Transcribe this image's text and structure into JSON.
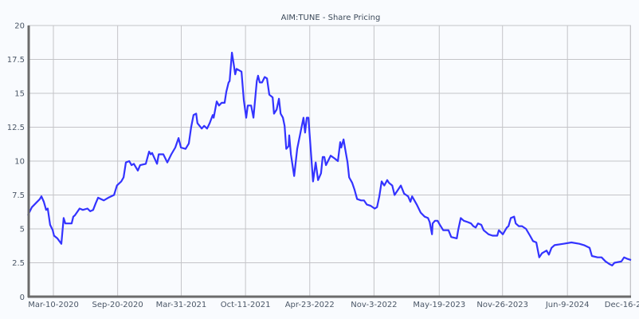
{
  "chart_data": {
    "type": "line",
    "title": "AIM:TUNE - Share Pricing",
    "xlabel": "",
    "ylabel": "",
    "ylim": [
      0,
      20
    ],
    "xlim": [
      "2019-12-24",
      "2024-12-18"
    ],
    "grid": true,
    "legend": "none",
    "line_color": "#3333ff",
    "y_ticks": [
      {
        "value": 0,
        "label": "0"
      },
      {
        "value": 2.5,
        "label": "2.5"
      },
      {
        "value": 5,
        "label": "5"
      },
      {
        "value": 7.5,
        "label": "7.5"
      },
      {
        "value": 10,
        "label": "10"
      },
      {
        "value": 12.5,
        "label": "12.5"
      },
      {
        "value": 15,
        "label": "15"
      },
      {
        "value": 17.5,
        "label": "17.5"
      },
      {
        "value": 20,
        "label": "20"
      }
    ],
    "x_ticks": [
      {
        "date": "2020-03-10",
        "label": "Mar-10-2020"
      },
      {
        "date": "2020-09-20",
        "label": "Sep-20-2020"
      },
      {
        "date": "2021-03-31",
        "label": "Mar-31-2021"
      },
      {
        "date": "2021-10-11",
        "label": "Oct-11-2021"
      },
      {
        "date": "2022-04-23",
        "label": "Apr-23-2022"
      },
      {
        "date": "2022-11-03",
        "label": "Nov-3-2022"
      },
      {
        "date": "2023-05-19",
        "label": "May-19-2023"
      },
      {
        "date": "2023-11-26",
        "label": "Nov-26-2023"
      },
      {
        "date": "2024-06-09",
        "label": "Jun-9-2024"
      },
      {
        "date": "2024-12-16",
        "label": "Dec-16-2024"
      }
    ],
    "series": [
      {
        "points": [
          [
            "2019-12-24",
            6.0
          ],
          [
            "2020-01-05",
            6.6
          ],
          [
            "2020-01-17",
            6.9
          ],
          [
            "2020-01-29",
            7.2
          ],
          [
            "2020-02-03",
            7.4
          ],
          [
            "2020-02-10",
            7.0
          ],
          [
            "2020-02-17",
            6.4
          ],
          [
            "2020-02-22",
            6.5
          ],
          [
            "2020-02-29",
            5.3
          ],
          [
            "2020-03-08",
            4.9
          ],
          [
            "2020-03-12",
            4.5
          ],
          [
            "2020-03-22",
            4.3
          ],
          [
            "2020-04-03",
            3.9
          ],
          [
            "2020-04-10",
            5.8
          ],
          [
            "2020-04-15",
            5.4
          ],
          [
            "2020-05-04",
            5.4
          ],
          [
            "2020-05-09",
            5.9
          ],
          [
            "2020-05-14",
            6.0
          ],
          [
            "2020-05-28",
            6.5
          ],
          [
            "2020-06-07",
            6.4
          ],
          [
            "2020-06-21",
            6.5
          ],
          [
            "2020-06-29",
            6.3
          ],
          [
            "2020-07-08",
            6.4
          ],
          [
            "2020-07-16",
            6.9
          ],
          [
            "2020-07-23",
            7.3
          ],
          [
            "2020-08-09",
            7.1
          ],
          [
            "2020-08-23",
            7.3
          ],
          [
            "2020-09-09",
            7.5
          ],
          [
            "2020-09-18",
            8.2
          ],
          [
            "2020-10-01",
            8.5
          ],
          [
            "2020-10-08",
            8.8
          ],
          [
            "2020-10-15",
            9.9
          ],
          [
            "2020-10-25",
            10.0
          ],
          [
            "2020-11-01",
            9.7
          ],
          [
            "2020-11-08",
            9.8
          ],
          [
            "2020-11-20",
            9.3
          ],
          [
            "2020-11-27",
            9.7
          ],
          [
            "2020-12-14",
            9.8
          ],
          [
            "2020-12-24",
            10.7
          ],
          [
            "2020-12-29",
            10.5
          ],
          [
            "2021-01-02",
            10.6
          ],
          [
            "2021-01-17",
            9.8
          ],
          [
            "2021-01-22",
            10.5
          ],
          [
            "2021-02-05",
            10.5
          ],
          [
            "2021-02-17",
            9.9
          ],
          [
            "2021-03-01",
            10.5
          ],
          [
            "2021-03-13",
            11.0
          ],
          [
            "2021-03-23",
            11.7
          ],
          [
            "2021-03-30",
            11.0
          ],
          [
            "2021-04-13",
            10.9
          ],
          [
            "2021-04-23",
            11.3
          ],
          [
            "2021-04-30",
            12.5
          ],
          [
            "2021-05-07",
            13.4
          ],
          [
            "2021-05-15",
            13.5
          ],
          [
            "2021-05-19",
            12.8
          ],
          [
            "2021-06-01",
            12.4
          ],
          [
            "2021-06-08",
            12.6
          ],
          [
            "2021-06-17",
            12.4
          ],
          [
            "2021-06-25",
            12.8
          ],
          [
            "2021-07-04",
            13.4
          ],
          [
            "2021-07-07",
            13.2
          ],
          [
            "2021-07-16",
            14.4
          ],
          [
            "2021-07-23",
            14.1
          ],
          [
            "2021-07-31",
            14.3
          ],
          [
            "2021-08-09",
            14.3
          ],
          [
            "2021-08-14",
            15.1
          ],
          [
            "2021-08-21",
            15.8
          ],
          [
            "2021-08-24",
            15.9
          ],
          [
            "2021-08-31",
            18.0
          ],
          [
            "2021-09-05",
            17.2
          ],
          [
            "2021-09-10",
            16.4
          ],
          [
            "2021-09-14",
            16.8
          ],
          [
            "2021-09-29",
            16.6
          ],
          [
            "2021-10-06",
            14.5
          ],
          [
            "2021-10-13",
            13.2
          ],
          [
            "2021-10-18",
            14.1
          ],
          [
            "2021-10-28",
            14.1
          ],
          [
            "2021-11-04",
            13.2
          ],
          [
            "2021-11-14",
            15.9
          ],
          [
            "2021-11-18",
            16.3
          ],
          [
            "2021-11-23",
            15.8
          ],
          [
            "2021-11-30",
            15.8
          ],
          [
            "2021-12-08",
            16.2
          ],
          [
            "2021-12-15",
            16.1
          ],
          [
            "2021-12-22",
            14.9
          ],
          [
            "2022-01-01",
            14.7
          ],
          [
            "2022-01-05",
            13.5
          ],
          [
            "2022-01-13",
            13.8
          ],
          [
            "2022-01-20",
            14.6
          ],
          [
            "2022-01-25",
            13.5
          ],
          [
            "2022-02-01",
            13.2
          ],
          [
            "2022-02-06",
            12.6
          ],
          [
            "2022-02-11",
            10.9
          ],
          [
            "2022-02-18",
            11.1
          ],
          [
            "2022-02-20",
            11.9
          ],
          [
            "2022-02-25",
            10.5
          ],
          [
            "2022-03-07",
            8.9
          ],
          [
            "2022-03-16",
            10.9
          ],
          [
            "2022-03-26",
            12.1
          ],
          [
            "2022-04-04",
            13.2
          ],
          [
            "2022-04-09",
            12.1
          ],
          [
            "2022-04-14",
            13.2
          ],
          [
            "2022-04-19",
            13.2
          ],
          [
            "2022-05-03",
            8.5
          ],
          [
            "2022-05-11",
            9.9
          ],
          [
            "2022-05-18",
            8.6
          ],
          [
            "2022-05-27",
            9.1
          ],
          [
            "2022-06-01",
            10.3
          ],
          [
            "2022-06-06",
            10.3
          ],
          [
            "2022-06-11",
            9.7
          ],
          [
            "2022-06-25",
            10.4
          ],
          [
            "2022-07-07",
            10.2
          ],
          [
            "2022-07-17",
            10.0
          ],
          [
            "2022-07-24",
            11.4
          ],
          [
            "2022-07-27",
            11.0
          ],
          [
            "2022-08-03",
            11.6
          ],
          [
            "2022-08-08",
            10.9
          ],
          [
            "2022-08-15",
            9.9
          ],
          [
            "2022-08-20",
            8.8
          ],
          [
            "2022-08-29",
            8.4
          ],
          [
            "2022-09-05",
            7.9
          ],
          [
            "2022-09-13",
            7.2
          ],
          [
            "2022-09-25",
            7.1
          ],
          [
            "2022-10-04",
            7.1
          ],
          [
            "2022-10-12",
            6.8
          ],
          [
            "2022-10-24",
            6.7
          ],
          [
            "2022-11-05",
            6.5
          ],
          [
            "2022-11-12",
            6.6
          ],
          [
            "2022-11-19",
            7.4
          ],
          [
            "2022-11-26",
            8.5
          ],
          [
            "2022-12-04",
            8.2
          ],
          [
            "2022-12-13",
            8.6
          ],
          [
            "2022-12-18",
            8.4
          ],
          [
            "2022-12-28",
            8.2
          ],
          [
            "2023-01-04",
            7.5
          ],
          [
            "2023-01-23",
            8.2
          ],
          [
            "2023-02-02",
            7.6
          ],
          [
            "2023-02-14",
            7.4
          ],
          [
            "2023-02-21",
            7.0
          ],
          [
            "2023-02-26",
            7.4
          ],
          [
            "2023-03-12",
            6.8
          ],
          [
            "2023-03-24",
            6.2
          ],
          [
            "2023-04-05",
            5.9
          ],
          [
            "2023-04-15",
            5.8
          ],
          [
            "2023-04-20",
            5.5
          ],
          [
            "2023-04-27",
            4.6
          ],
          [
            "2023-04-29",
            5.4
          ],
          [
            "2023-05-06",
            5.6
          ],
          [
            "2023-05-14",
            5.6
          ],
          [
            "2023-05-21",
            5.3
          ],
          [
            "2023-05-31",
            4.9
          ],
          [
            "2023-06-16",
            4.9
          ],
          [
            "2023-06-24",
            4.4
          ],
          [
            "2023-07-11",
            4.3
          ],
          [
            "2023-07-15",
            4.9
          ],
          [
            "2023-07-23",
            5.8
          ],
          [
            "2023-08-01",
            5.6
          ],
          [
            "2023-08-13",
            5.5
          ],
          [
            "2023-08-23",
            5.4
          ],
          [
            "2023-08-30",
            5.2
          ],
          [
            "2023-09-06",
            5.1
          ],
          [
            "2023-09-13",
            5.4
          ],
          [
            "2023-09-23",
            5.3
          ],
          [
            "2023-09-30",
            4.9
          ],
          [
            "2023-10-15",
            4.6
          ],
          [
            "2023-10-27",
            4.5
          ],
          [
            "2023-11-10",
            4.5
          ],
          [
            "2023-11-15",
            4.9
          ],
          [
            "2023-11-27",
            4.6
          ],
          [
            "2023-12-09",
            5.1
          ],
          [
            "2023-12-14",
            5.2
          ],
          [
            "2023-12-21",
            5.8
          ],
          [
            "2023-12-31",
            5.9
          ],
          [
            "2024-01-05",
            5.4
          ],
          [
            "2024-01-14",
            5.2
          ],
          [
            "2024-01-24",
            5.2
          ],
          [
            "2024-02-05",
            5.0
          ],
          [
            "2024-02-17",
            4.5
          ],
          [
            "2024-02-26",
            4.1
          ],
          [
            "2024-03-07",
            4.0
          ],
          [
            "2024-03-16",
            2.9
          ],
          [
            "2024-03-24",
            3.2
          ],
          [
            "2024-04-07",
            3.4
          ],
          [
            "2024-04-14",
            3.1
          ],
          [
            "2024-04-22",
            3.6
          ],
          [
            "2024-05-01",
            3.8
          ],
          [
            "2024-05-28",
            3.9
          ],
          [
            "2024-06-21",
            4.0
          ],
          [
            "2024-07-15",
            3.9
          ],
          [
            "2024-07-29",
            3.8
          ],
          [
            "2024-08-15",
            3.6
          ],
          [
            "2024-08-22",
            3.0
          ],
          [
            "2024-09-08",
            2.9
          ],
          [
            "2024-09-20",
            2.9
          ],
          [
            "2024-10-02",
            2.6
          ],
          [
            "2024-10-14",
            2.4
          ],
          [
            "2024-10-22",
            2.3
          ],
          [
            "2024-10-29",
            2.5
          ],
          [
            "2024-11-19",
            2.6
          ],
          [
            "2024-11-27",
            2.9
          ],
          [
            "2024-12-06",
            2.8
          ],
          [
            "2024-12-18",
            2.7
          ]
        ]
      }
    ]
  }
}
